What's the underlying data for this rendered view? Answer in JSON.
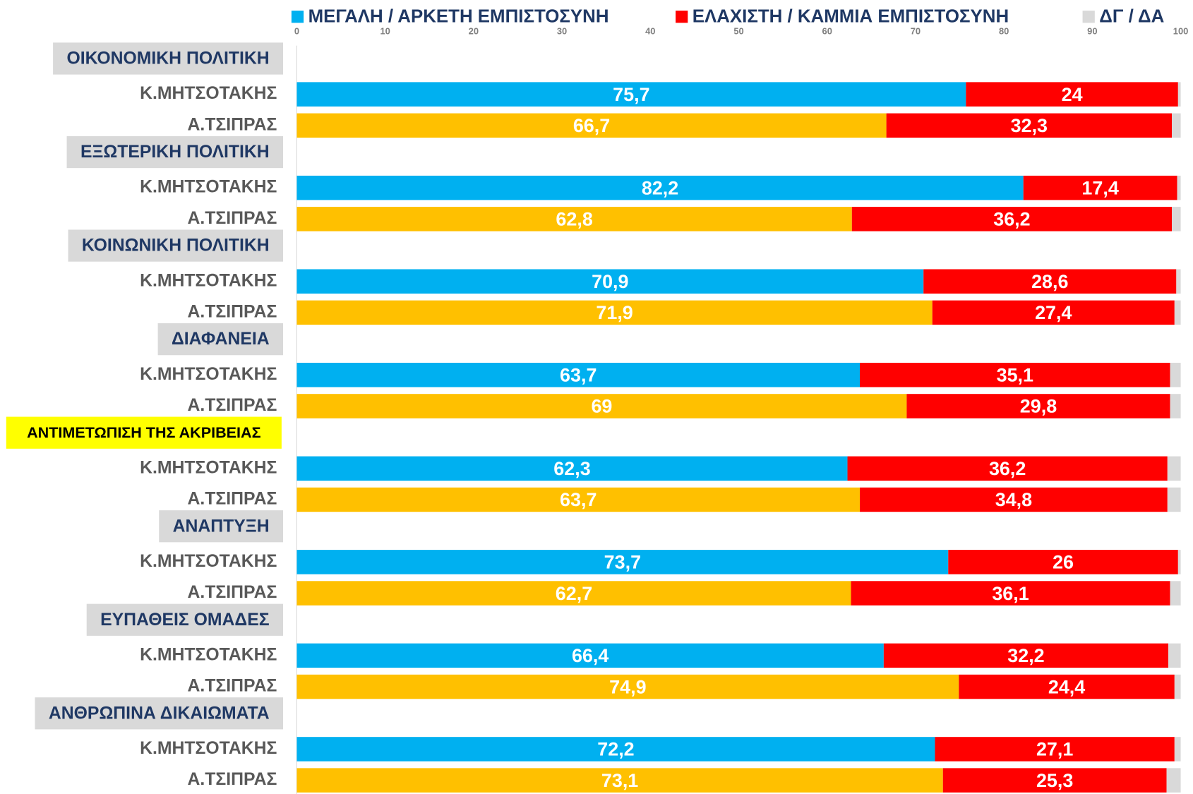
{
  "chart_data": {
    "type": "stacked_barh",
    "categories": [
      "Κ.ΜΗΤΣΟΤΑΚΗΣ",
      "Α.ΤΣΙΠΡΑΣ",
      "Κ.ΜΗΤΣΟΤΑΚΗΣ",
      "Α.ΤΣΙΠΡΑΣ",
      "Κ.ΜΗΤΣΟΤΑΚΗΣ",
      "Α.ΤΣΙΠΡΑΣ",
      "Κ.ΜΗΤΣΟΤΑΚΗΣ",
      "Α.ΤΣΙΠΡΑΣ",
      "Κ.ΜΗΤΣΟΤΑΚΗΣ",
      "Α.ΤΣΙΠΡΑΣ",
      "Κ.ΜΗΤΣΟΤΑΚΗΣ",
      "Α.ΤΣΙΠΡΑΣ",
      "Κ.ΜΗΤΣΟΤΑΚΗΣ",
      "Α.ΤΣΙΠΡΑΣ",
      "Κ.ΜΗΤΣΟΤΑΚΗΣ",
      "Α.ΤΣΙΠΡΑΣ"
    ],
    "groups": [
      "ΟΙΚΟΝΟΜΙΚΗ ΠΟΛΙΤΙΚΗ",
      "ΕΞΩΤΕΡΙΚΗ ΠΟΛΙΤΙΚΗ",
      "ΚΟΙΝΩΝΙΚΗ ΠΟΛΙΤΙΚΗ",
      "ΔΙΑΦΑΝΕΙΑ",
      "ΑΝΤΙΜΕΤΩΠΙΣΗ ΤΗΣ ΑΚΡΙΒΕΙΑΣ",
      "ΑΝΑΠΤΥΞΗ",
      "ΕΥΠΑΘΕΙΣ ΟΜΑΔΕΣ",
      "ΑΝΘΡΩΠΙΝΑ ΔΙΚΑΙΩΜΑΤΑ"
    ],
    "highlight_group": 4,
    "series": [
      {
        "name": "ΜΕΓΑΛΗ / ΑΡΚΕΤΗ ΕΜΠΙΣΤΟΣΥΝΗ",
        "color": "#00b0f0",
        "colors": [
          "#00b0f0",
          "#ffc000",
          "#00b0f0",
          "#ffc000",
          "#00b0f0",
          "#ffc000",
          "#00b0f0",
          "#ffc000",
          "#00b0f0",
          "#ffc000",
          "#00b0f0",
          "#ffc000",
          "#00b0f0",
          "#ffc000",
          "#00b0f0",
          "#ffc000"
        ],
        "values": [
          75.7,
          66.7,
          82.2,
          62.8,
          70.9,
          71.9,
          63.7,
          69,
          62.3,
          63.7,
          73.7,
          62.7,
          66.4,
          74.9,
          72.2,
          73.1
        ],
        "value_labels": [
          "75,7",
          "66,7",
          "82,2",
          "62,8",
          "70,9",
          "71,9",
          "63,7",
          "69",
          "62,3",
          "63,7",
          "73,7",
          "62,7",
          "66,4",
          "74,9",
          "72,2",
          "73,1"
        ]
      },
      {
        "name": "ΕΛΑΧΙΣΤΗ / ΚΑΜΜΙΑ ΕΜΠΙΣΤΟΣΥΝΗ",
        "color": "#ff0000",
        "values": [
          24,
          32.3,
          17.4,
          36.2,
          28.6,
          27.4,
          35.1,
          29.8,
          36.2,
          34.8,
          26,
          36.1,
          32.2,
          24.4,
          27.1,
          25.3
        ],
        "value_labels": [
          "24",
          "32,3",
          "17,4",
          "36,2",
          "28,6",
          "27,4",
          "35,1",
          "29,8",
          "36,2",
          "34,8",
          "26",
          "36,1",
          "32,2",
          "24,4",
          "27,1",
          "25,3"
        ]
      },
      {
        "name": "ΔΓ / ΔΑ",
        "color": "#d9d9d9",
        "values": [
          0.3,
          1,
          0.4,
          1,
          0.5,
          0.7,
          1.2,
          1.2,
          1.5,
          1.5,
          0.3,
          1.2,
          1.4,
          0.7,
          0.7,
          1.6
        ]
      }
    ],
    "xlim": [
      0,
      100
    ],
    "xticks": [
      0,
      10,
      20,
      30,
      40,
      50,
      60,
      70,
      80,
      90,
      100
    ]
  }
}
